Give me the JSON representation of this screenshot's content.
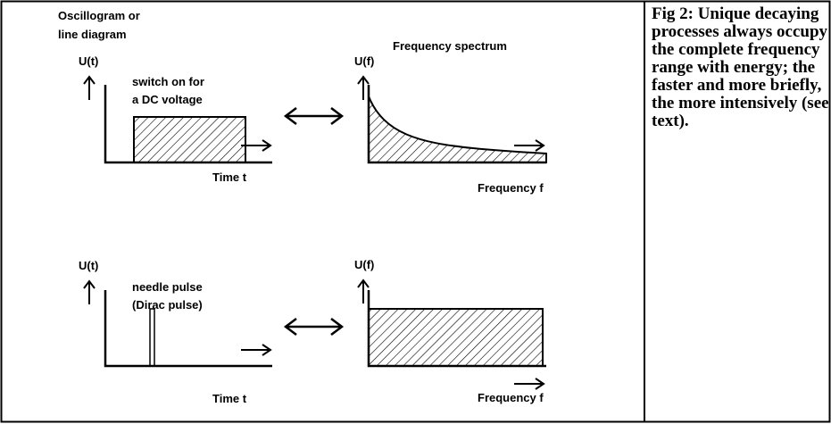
{
  "figure": {
    "title": [
      "Oscillogram or",
      "line diagram"
    ],
    "spectrum_title": "Frequency spectrum",
    "panels": [
      {
        "y_label": "U(t)",
        "note": [
          "switch on for",
          "a DC voltage"
        ],
        "x_label": "Time t"
      },
      {
        "y_label": "U(f)",
        "x_label": "Frequency f"
      },
      {
        "y_label": "U(t)",
        "note": [
          "needle pulse",
          "(Dirac pulse)"
        ],
        "x_label": "Time t"
      },
      {
        "y_label": "U(f)",
        "x_label": "Frequency f"
      }
    ]
  },
  "caption": "Fig 2: Unique decaying processes always occupy the complete frequency range with energy; the faster and more briefly, the more intensively (see text)."
}
